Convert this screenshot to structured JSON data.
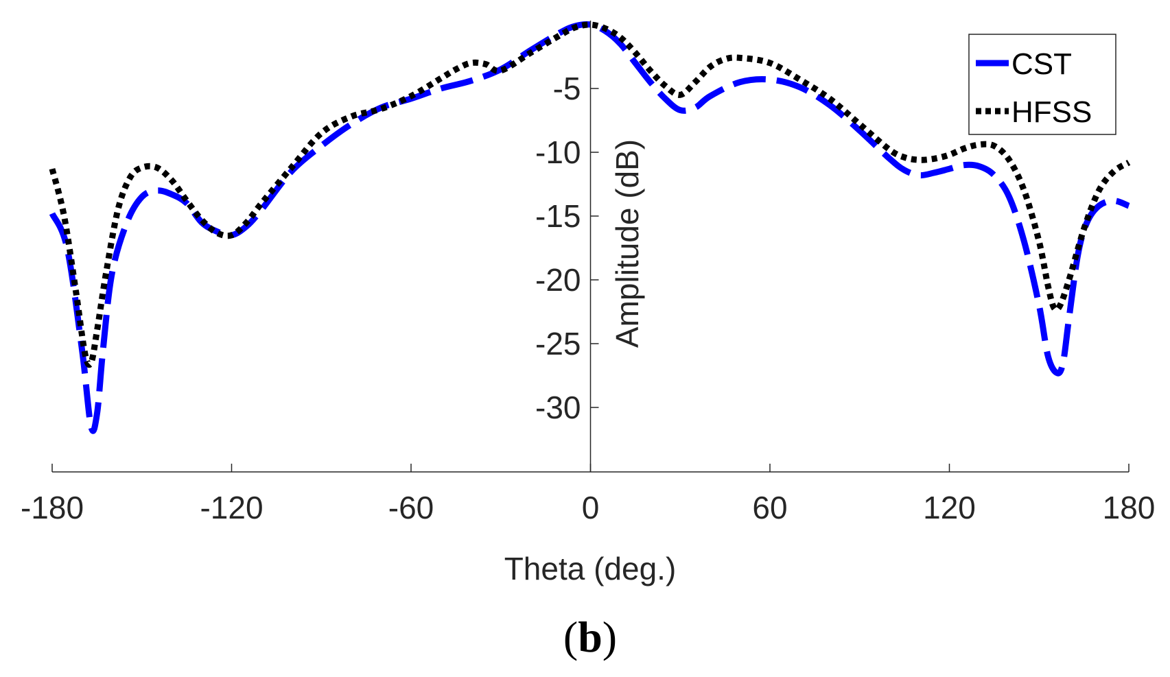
{
  "chart_data": {
    "type": "line",
    "title": "",
    "xlabel": "Theta (deg.)",
    "ylabel": "Amplitude (dB)",
    "xlim": [
      -180,
      180
    ],
    "ylim": [
      -35,
      0
    ],
    "xticks": [
      -180,
      -120,
      -60,
      0,
      60,
      120,
      180
    ],
    "yticks": [
      -30,
      -25,
      -20,
      -15,
      -10,
      -5
    ],
    "grid": false,
    "legend_position": "top-right",
    "panel_label": {
      "open": "(",
      "letter": "b",
      "close": ")"
    },
    "series": [
      {
        "name": "CST",
        "color": "#0000FF",
        "style": "dashed",
        "x": [
          -180,
          -175,
          -170,
          -167,
          -165,
          -163,
          -160,
          -155,
          -150,
          -145,
          -140,
          -135,
          -130,
          -125,
          -120,
          -115,
          -110,
          -100,
          -90,
          -80,
          -70,
          -60,
          -50,
          -40,
          -30,
          -20,
          -10,
          -5,
          0,
          5,
          10,
          15,
          20,
          25,
          30,
          35,
          40,
          50,
          60,
          70,
          80,
          90,
          100,
          105,
          110,
          115,
          120,
          125,
          130,
          135,
          140,
          145,
          150,
          153,
          156,
          158,
          160,
          163,
          166,
          170,
          175,
          180
        ],
        "y": [
          -14.8,
          -17.5,
          -25.5,
          -31.5,
          -30.5,
          -25.5,
          -19.5,
          -15.5,
          -13.5,
          -13.0,
          -13.3,
          -14.0,
          -15.5,
          -16.2,
          -16.5,
          -15.8,
          -14.5,
          -11.5,
          -9.5,
          -7.8,
          -6.5,
          -5.8,
          -5.0,
          -4.4,
          -3.5,
          -2.0,
          -0.6,
          -0.1,
          0.0,
          -0.5,
          -1.5,
          -3.0,
          -4.5,
          -5.8,
          -6.7,
          -6.5,
          -5.6,
          -4.5,
          -4.3,
          -4.9,
          -6.3,
          -8.3,
          -10.5,
          -11.4,
          -11.8,
          -11.6,
          -11.3,
          -11.0,
          -11.1,
          -11.8,
          -13.5,
          -17.0,
          -22.0,
          -26.0,
          -27.3,
          -26.5,
          -23.0,
          -18.0,
          -15.5,
          -14.2,
          -13.8,
          -14.2
        ]
      },
      {
        "name": "HFSS",
        "color": "#000000",
        "style": "dotted",
        "x": [
          -180,
          -176,
          -172,
          -169,
          -167,
          -165,
          -162,
          -158,
          -154,
          -150,
          -145,
          -140,
          -135,
          -130,
          -125,
          -120,
          -115,
          -110,
          -100,
          -90,
          -80,
          -70,
          -60,
          -50,
          -45,
          -40,
          -35,
          -30,
          -20,
          -10,
          -5,
          0,
          5,
          10,
          15,
          20,
          25,
          30,
          35,
          40,
          45,
          50,
          60,
          70,
          80,
          90,
          100,
          105,
          110,
          115,
          120,
          125,
          130,
          135,
          140,
          145,
          150,
          153,
          155,
          157,
          160,
          165,
          170,
          175,
          180
        ],
        "y": [
          -11.3,
          -15.0,
          -21.0,
          -25.8,
          -26.5,
          -24.0,
          -19.5,
          -14.5,
          -12.0,
          -11.2,
          -11.2,
          -12.2,
          -13.8,
          -15.3,
          -16.3,
          -16.5,
          -15.5,
          -14.0,
          -11.2,
          -8.5,
          -7.2,
          -6.6,
          -5.6,
          -4.2,
          -3.5,
          -3.0,
          -3.1,
          -3.6,
          -2.2,
          -0.8,
          -0.2,
          0.0,
          -0.3,
          -1.0,
          -2.2,
          -3.6,
          -4.8,
          -5.5,
          -4.5,
          -3.3,
          -2.7,
          -2.6,
          -3.0,
          -4.3,
          -5.8,
          -7.8,
          -9.8,
          -10.4,
          -10.6,
          -10.5,
          -10.2,
          -9.7,
          -9.4,
          -9.5,
          -10.6,
          -13.0,
          -17.0,
          -20.5,
          -22.2,
          -22.0,
          -20.0,
          -16.0,
          -13.0,
          -11.5,
          -10.8
        ]
      }
    ]
  }
}
